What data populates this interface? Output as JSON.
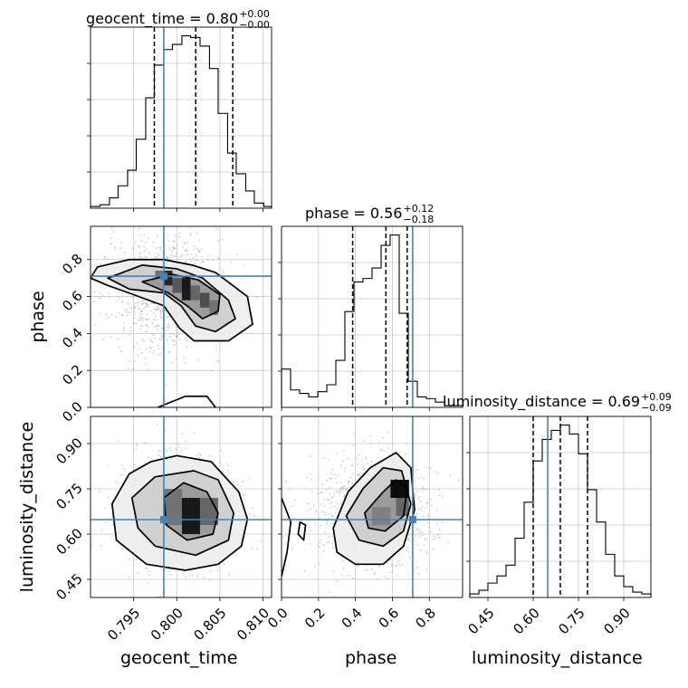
{
  "chart_data": {
    "type": "corner",
    "parameters": [
      "geocent_time",
      "phase",
      "luminosity_distance"
    ],
    "truths": {
      "geocent_time": 0.7985,
      "phase": 0.71,
      "luminosity_distance": 0.648
    },
    "titles": [
      {
        "text": "geocent_time = 0.80",
        "plus": "+0.00",
        "minus": "−0.00"
      },
      {
        "text": "phase = 0.56",
        "plus": "+0.12",
        "minus": "−0.18"
      },
      {
        "text": "luminosity_distance = 0.69",
        "plus": "+0.09",
        "minus": "−0.09"
      }
    ],
    "axes": {
      "geocent_time": {
        "range": [
          0.79,
          0.811
        ],
        "ticks": [
          0.795,
          0.8,
          0.805,
          0.81
        ],
        "tick_labels": [
          "0.795",
          "0.800",
          "0.805",
          "0.810"
        ]
      },
      "phase": {
        "range": [
          0.0,
          0.98
        ],
        "ticks": [
          0.0,
          0.2,
          0.4,
          0.6,
          0.8
        ],
        "tick_labels": [
          "0.0",
          "0.2",
          "0.4",
          "0.6",
          "0.8"
        ]
      },
      "luminosity_distance": {
        "range": [
          0.39,
          0.99
        ],
        "ticks": [
          0.45,
          0.6,
          0.75,
          0.9
        ],
        "tick_labels": [
          "0.45",
          "0.60",
          "0.75",
          "0.90"
        ]
      }
    },
    "histograms": {
      "geocent_time": {
        "edges": [
          0.79,
          0.7911,
          0.7922,
          0.7932,
          0.7943,
          0.7953,
          0.7964,
          0.7974,
          0.7985,
          0.7995,
          0.8006,
          0.8016,
          0.8027,
          0.8038,
          0.8048,
          0.8059,
          0.8069,
          0.808,
          0.809,
          0.8101,
          0.811
        ],
        "counts": [
          1,
          2,
          6,
          13,
          22,
          40,
          64,
          83,
          92,
          95,
          100,
          99,
          94,
          81,
          55,
          32,
          20,
          10,
          3,
          1
        ],
        "quantiles": [
          0.7974,
          0.8022,
          0.8065
        ]
      },
      "phase": {
        "edges": [
          0.0,
          0.049,
          0.098,
          0.147,
          0.196,
          0.245,
          0.294,
          0.343,
          0.392,
          0.441,
          0.49,
          0.539,
          0.588,
          0.637,
          0.686,
          0.735,
          0.784,
          0.833,
          0.882,
          0.931,
          0.98
        ],
        "counts": [
          22,
          10,
          8,
          6,
          9,
          13,
          27,
          55,
          72,
          74,
          80,
          93,
          99,
          54,
          15,
          6,
          5,
          3,
          1,
          1
        ],
        "quantiles": [
          0.385,
          0.565,
          0.68
        ]
      },
      "luminosity_distance": {
        "edges": [
          0.39,
          0.42,
          0.45,
          0.48,
          0.51,
          0.54,
          0.57,
          0.6,
          0.63,
          0.66,
          0.69,
          0.72,
          0.75,
          0.78,
          0.81,
          0.84,
          0.87,
          0.9,
          0.93,
          0.96,
          0.99
        ],
        "counts": [
          2,
          4,
          8,
          12,
          18,
          33,
          53,
          76,
          88,
          93,
          96,
          91,
          80,
          60,
          42,
          24,
          12,
          6,
          3,
          2
        ],
        "quantiles": [
          0.6,
          0.69,
          0.78
        ]
      }
    },
    "contours": {
      "phase_vs_geocent_time": [
        {
          "level": "outer",
          "x": [
            0.79,
            0.7908,
            0.7945,
            0.7985,
            0.8018,
            0.8045,
            0.8082,
            0.8088,
            0.806,
            0.802,
            0.8003,
            0.7985,
            0.795,
            0.792,
            0.79
          ],
          "y": [
            0.7,
            0.76,
            0.8,
            0.8,
            0.77,
            0.73,
            0.6,
            0.45,
            0.36,
            0.36,
            0.43,
            0.55,
            0.61,
            0.66,
            0.7
          ]
        },
        {
          "level": "middle",
          "x": [
            0.792,
            0.796,
            0.8,
            0.803,
            0.806,
            0.8068,
            0.8045,
            0.8022,
            0.8005,
            0.7985,
            0.7945,
            0.792
          ],
          "y": [
            0.7,
            0.77,
            0.75,
            0.7,
            0.58,
            0.48,
            0.41,
            0.44,
            0.55,
            0.62,
            0.64,
            0.7
          ]
        },
        {
          "level": "inner",
          "x": [
            0.796,
            0.7995,
            0.8025,
            0.805,
            0.8048,
            0.803,
            0.8012,
            0.799,
            0.796
          ],
          "y": [
            0.68,
            0.72,
            0.69,
            0.61,
            0.52,
            0.48,
            0.55,
            0.62,
            0.68
          ]
        },
        {
          "level": "tail",
          "x": [
            0.7978,
            0.801,
            0.8035,
            0.8045
          ],
          "y": [
            0.0,
            0.06,
            0.06,
            0.0
          ]
        }
      ],
      "luminosity_distance_vs_geocent_time": [
        {
          "level": "outer",
          "x": [
            0.7925,
            0.7945,
            0.797,
            0.8,
            0.804,
            0.8072,
            0.8082,
            0.8075,
            0.8048,
            0.801,
            0.7965,
            0.793,
            0.7925
          ],
          "y": [
            0.7,
            0.8,
            0.84,
            0.86,
            0.84,
            0.74,
            0.65,
            0.56,
            0.5,
            0.48,
            0.5,
            0.58,
            0.7
          ]
        },
        {
          "level": "middle",
          "x": [
            0.7948,
            0.7975,
            0.802,
            0.8048,
            0.8066,
            0.806,
            0.8022,
            0.7975,
            0.7955,
            0.7948
          ],
          "y": [
            0.72,
            0.79,
            0.81,
            0.78,
            0.67,
            0.58,
            0.53,
            0.56,
            0.62,
            0.72
          ]
        },
        {
          "level": "inner",
          "x": [
            0.7985,
            0.8008,
            0.8035,
            0.8048,
            0.8042,
            0.8012,
            0.7988,
            0.7985
          ],
          "y": [
            0.72,
            0.77,
            0.74,
            0.67,
            0.6,
            0.58,
            0.63,
            0.72
          ]
        }
      ],
      "luminosity_distance_vs_phase": [
        {
          "level": "outer",
          "x": [
            0.28,
            0.36,
            0.48,
            0.62,
            0.7,
            0.72,
            0.66,
            0.55,
            0.4,
            0.3,
            0.28
          ],
          "y": [
            0.62,
            0.74,
            0.82,
            0.87,
            0.82,
            0.68,
            0.56,
            0.5,
            0.5,
            0.54,
            0.62
          ]
        },
        {
          "level": "middle",
          "x": [
            0.35,
            0.44,
            0.55,
            0.65,
            0.7,
            0.66,
            0.55,
            0.42,
            0.35
          ],
          "y": [
            0.66,
            0.75,
            0.82,
            0.81,
            0.7,
            0.61,
            0.56,
            0.58,
            0.66
          ]
        },
        {
          "level": "inner",
          "x": [
            0.45,
            0.55,
            0.62,
            0.68,
            0.66,
            0.56,
            0.47,
            0.45
          ],
          "y": [
            0.67,
            0.74,
            0.78,
            0.75,
            0.66,
            0.61,
            0.62,
            0.67
          ]
        },
        {
          "level": "edge",
          "x": [
            0.0,
            0.05,
            0.03,
            0.0
          ],
          "y": [
            0.72,
            0.64,
            0.54,
            0.46
          ]
        },
        {
          "level": "blob",
          "x": [
            0.1,
            0.13,
            0.12,
            0.09,
            0.1
          ],
          "y": [
            0.64,
            0.63,
            0.58,
            0.6,
            0.64
          ]
        }
      ]
    },
    "density_cells": {
      "phase_vs_geocent_time": [
        {
          "x": [
            0.7975,
            0.7985
          ],
          "y": [
            0.7,
            0.74
          ],
          "shade": 0.55
        },
        {
          "x": [
            0.7985,
            0.7995
          ],
          "y": [
            0.66,
            0.74
          ],
          "shade": 0.85
        },
        {
          "x": [
            0.7995,
            0.8006
          ],
          "y": [
            0.62,
            0.7
          ],
          "shade": 0.65
        },
        {
          "x": [
            0.8006,
            0.8016
          ],
          "y": [
            0.58,
            0.7
          ],
          "shade": 0.9
        },
        {
          "x": [
            0.8016,
            0.8027
          ],
          "y": [
            0.58,
            0.66
          ],
          "shade": 0.6
        },
        {
          "x": [
            0.8027,
            0.8038
          ],
          "y": [
            0.54,
            0.62
          ],
          "shade": 0.7
        },
        {
          "x": [
            0.8038,
            0.8048
          ],
          "y": [
            0.5,
            0.58
          ],
          "shade": 0.55
        }
      ],
      "luminosity_distance_vs_geocent_time": [
        {
          "x": [
            0.7985,
            0.8006
          ],
          "y": [
            0.63,
            0.75
          ],
          "shade": 0.55
        },
        {
          "x": [
            0.8006,
            0.8027
          ],
          "y": [
            0.6,
            0.72
          ],
          "shade": 0.9
        },
        {
          "x": [
            0.8027,
            0.8048
          ],
          "y": [
            0.63,
            0.72
          ],
          "shade": 0.6
        }
      ],
      "luminosity_distance_vs_phase": [
        {
          "x": [
            0.49,
            0.59
          ],
          "y": [
            0.63,
            0.69
          ],
          "shade": 0.5
        },
        {
          "x": [
            0.59,
            0.69
          ],
          "y": [
            0.72,
            0.78
          ],
          "shade": 0.95
        },
        {
          "x": [
            0.62,
            0.69
          ],
          "y": [
            0.66,
            0.72
          ],
          "shade": 0.6
        }
      ]
    }
  }
}
